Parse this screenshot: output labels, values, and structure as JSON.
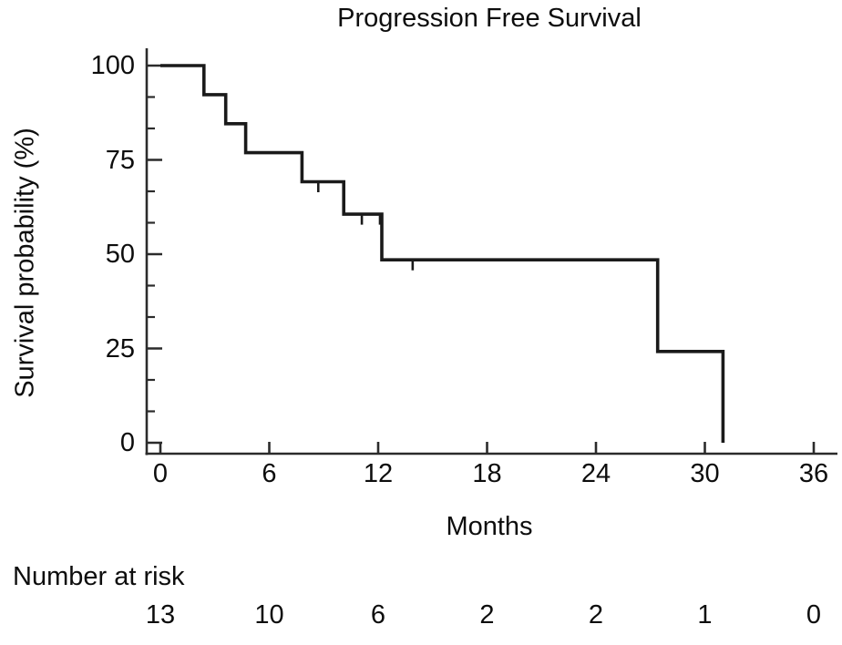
{
  "title": "Progression Free Survival",
  "y_axis": {
    "label": "Survival probability (%)",
    "tick_labels": [
      "100",
      "75",
      "50",
      "25",
      "0"
    ]
  },
  "x_axis": {
    "label": "Months",
    "tick_labels": [
      "0",
      "6",
      "12",
      "18",
      "24",
      "30",
      "36"
    ]
  },
  "risk_table": {
    "label": "Number at risk",
    "times": [
      0,
      6,
      12,
      18,
      24,
      30,
      36
    ],
    "counts": [
      "13",
      "10",
      "6",
      "2",
      "2",
      "1",
      "0"
    ]
  },
  "colors": {
    "curve": "#1a1a1a",
    "axis": "#2b2b2b",
    "text": "#0d0d0d",
    "background": "#ffffff"
  },
  "chart_data": {
    "type": "line",
    "subtype": "kaplan-meier-step",
    "title": "Progression Free Survival",
    "xlabel": "Months",
    "ylabel": "Survival probability (%)",
    "xlim": [
      0,
      36
    ],
    "ylim": [
      0,
      100
    ],
    "x_ticks": [
      0,
      6,
      12,
      18,
      24,
      30,
      36
    ],
    "y_ticks_major": [
      0,
      25,
      50,
      75,
      100
    ],
    "y_minor_divisions": 3,
    "grid": false,
    "legend": "none",
    "series": [
      {
        "name": "Progression Free Survival",
        "step_points": [
          [
            0,
            100
          ],
          [
            2.4,
            100
          ],
          [
            2.4,
            92.3
          ],
          [
            3.6,
            92.3
          ],
          [
            3.6,
            84.6
          ],
          [
            4.7,
            84.6
          ],
          [
            4.7,
            76.9
          ],
          [
            7.8,
            76.9
          ],
          [
            7.8,
            69.2
          ],
          [
            10.1,
            69.2
          ],
          [
            10.1,
            60.6
          ],
          [
            12.2,
            60.6
          ],
          [
            12.2,
            48.5
          ],
          [
            27.4,
            48.5
          ],
          [
            27.4,
            24.2
          ],
          [
            31,
            24.2
          ],
          [
            31,
            0
          ]
        ],
        "censor_marks": [
          [
            8.7,
            69.2
          ],
          [
            11.1,
            60.6
          ],
          [
            12.1,
            60.6
          ],
          [
            13.9,
            48.5
          ]
        ]
      }
    ],
    "number_at_risk": {
      "label": "Number at risk",
      "times": [
        0,
        6,
        12,
        18,
        24,
        30,
        36
      ],
      "counts": [
        13,
        10,
        6,
        2,
        2,
        1,
        0
      ]
    }
  }
}
